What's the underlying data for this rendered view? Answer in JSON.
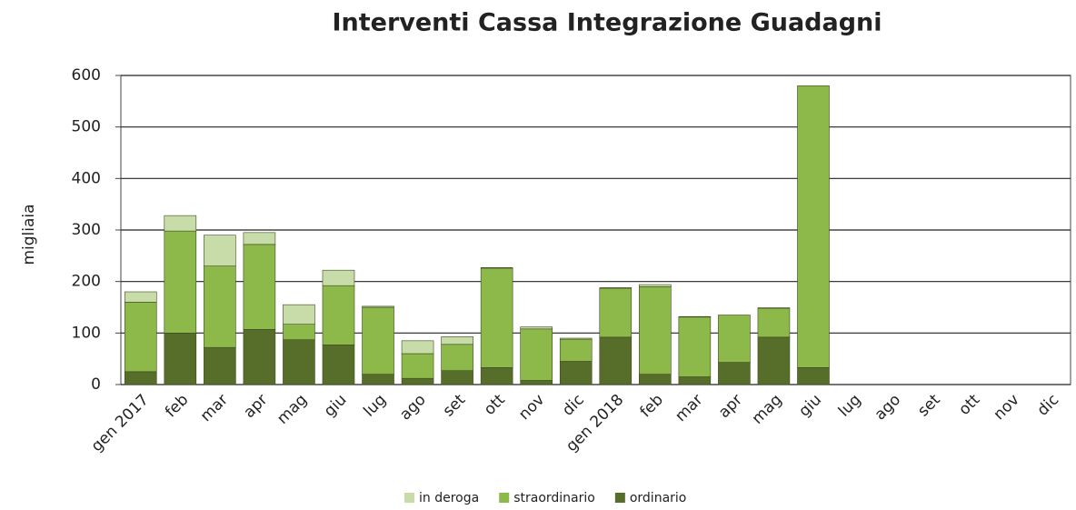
{
  "chart_data": {
    "type": "stacked_bar",
    "title": "Interventi Cassa Integrazione Guadagni",
    "y_label": "migliaia",
    "categories": [
      "gen 2017",
      "feb",
      "mar",
      "apr",
      "mag",
      "giu",
      "lug",
      "ago",
      "set",
      "ott",
      "nov",
      "dic",
      "gen 2018",
      "feb",
      "mar",
      "apr",
      "mag",
      "giu",
      "lug",
      "ago",
      "set",
      "ott",
      "nov",
      "dic"
    ],
    "series": [
      {
        "name": "in deroga",
        "color": "#c8dcaa",
        "values": [
          20,
          30,
          60,
          23,
          38,
          30,
          2,
          25,
          15,
          1,
          4,
          2,
          1,
          4,
          1,
          0,
          1,
          0,
          null,
          null,
          null,
          null,
          null,
          null
        ]
      },
      {
        "name": "straordinario",
        "color": "#8db84a",
        "values": [
          135,
          198,
          158,
          165,
          30,
          115,
          130,
          48,
          51,
          193,
          100,
          43,
          95,
          170,
          116,
          92,
          56,
          547,
          null,
          null,
          null,
          null,
          null,
          null
        ]
      },
      {
        "name": "ordinario",
        "color": "#566e2a",
        "values": [
          25,
          100,
          72,
          107,
          87,
          77,
          20,
          12,
          27,
          33,
          8,
          45,
          92,
          20,
          15,
          43,
          92,
          33,
          null,
          null,
          null,
          null,
          null,
          null
        ]
      }
    ],
    "ylim": [
      0,
      600
    ],
    "yticks": [
      0,
      100,
      200,
      300,
      400,
      500,
      600
    ],
    "grid": true
  }
}
